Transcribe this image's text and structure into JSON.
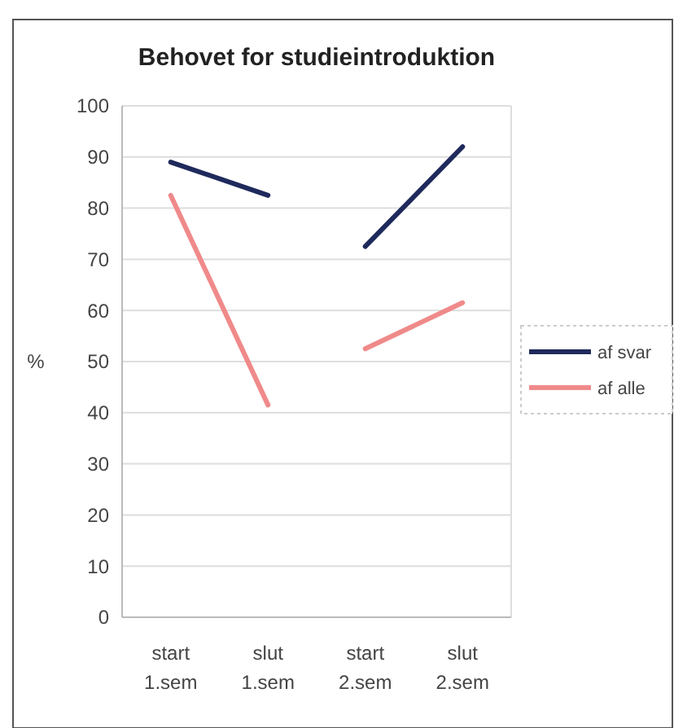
{
  "chart_data": {
    "type": "line",
    "title": "Behovet for studieintroduktion",
    "ylabel": "%",
    "categories": [
      "start 1.sem",
      "slut 1.sem",
      "start 2.sem",
      "slut 2.sem"
    ],
    "ylim": [
      0,
      100
    ],
    "yticks": [
      0,
      10,
      20,
      30,
      40,
      50,
      60,
      70,
      80,
      90,
      100
    ],
    "grid": "y",
    "legend": "right",
    "marker": "none",
    "line_style": "solid",
    "series": [
      {
        "name": "af svar",
        "color": "#1f2a5c",
        "values": [
          89,
          82.5,
          null,
          null
        ]
      },
      {
        "name": "af alle",
        "color": "#f08a8a",
        "values": [
          82.5,
          41.5,
          null,
          null
        ]
      },
      {
        "color": "#1f2a5c",
        "values": [
          null,
          null,
          72.5,
          92
        ]
      },
      {
        "color": "#f08a8a",
        "values": [
          null,
          null,
          52.5,
          61.5
        ]
      }
    ]
  }
}
